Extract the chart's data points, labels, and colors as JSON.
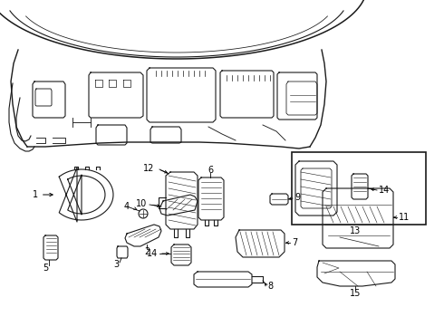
{
  "bg_color": "#ffffff",
  "line_color": "#1a1a1a",
  "lw": 0.8,
  "fig_width": 4.9,
  "fig_height": 3.6,
  "dpi": 100
}
